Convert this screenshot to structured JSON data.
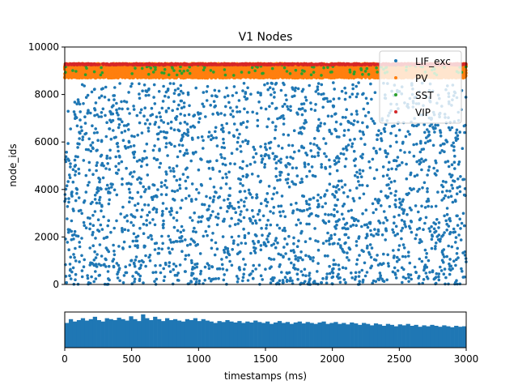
{
  "chart_data": [
    {
      "type": "scatter",
      "title": "V1 Nodes",
      "xlabel": "",
      "ylabel": "node_ids",
      "xlim": [
        0,
        3000
      ],
      "ylim": [
        0,
        10000
      ],
      "yticks": [
        0,
        2000,
        4000,
        6000,
        8000,
        10000
      ],
      "ytick_labels": [
        "0",
        "2000",
        "4000",
        "6000",
        "8000",
        "10000"
      ],
      "grid": false,
      "legend_position": "top-right",
      "series": [
        {
          "name": "LIF_exc",
          "color": "#1f77b4",
          "node_id_range": [
            0,
            8500
          ],
          "sample_spikes_per_100ms": 80
        },
        {
          "name": "PV",
          "color": "#ff7f0e",
          "node_id_range": [
            8700,
            9300
          ],
          "sample_spikes_per_100ms": 220
        },
        {
          "name": "SST",
          "color": "#2ca02c",
          "node_id_range": [
            8800,
            9250
          ],
          "sample_spikes_per_100ms": 4
        },
        {
          "name": "VIP",
          "color": "#d62728",
          "node_id_range": [
            9240,
            9300
          ],
          "sample_spikes_per_100ms": 30
        }
      ]
    },
    {
      "type": "bar",
      "title": "",
      "xlabel": "timestamps (ms)",
      "ylabel": "",
      "xlim": [
        0,
        3000
      ],
      "xticks": [
        0,
        500,
        1000,
        1500,
        2000,
        2500,
        3000
      ],
      "xtick_labels": [
        "0",
        "500",
        "1000",
        "1500",
        "2000",
        "2500",
        "3000"
      ],
      "bin_width_ms": 30,
      "color": "#1f77b4",
      "values": [
        0.52,
        0.6,
        0.55,
        0.58,
        0.62,
        0.57,
        0.6,
        0.65,
        0.58,
        0.55,
        0.62,
        0.6,
        0.58,
        0.63,
        0.6,
        0.57,
        0.66,
        0.6,
        0.56,
        0.7,
        0.62,
        0.58,
        0.65,
        0.6,
        0.56,
        0.62,
        0.58,
        0.6,
        0.57,
        0.55,
        0.6,
        0.58,
        0.62,
        0.56,
        0.6,
        0.57,
        0.55,
        0.52,
        0.56,
        0.54,
        0.58,
        0.55,
        0.53,
        0.56,
        0.52,
        0.55,
        0.53,
        0.57,
        0.54,
        0.52,
        0.55,
        0.5,
        0.53,
        0.56,
        0.52,
        0.54,
        0.5,
        0.53,
        0.55,
        0.51,
        0.54,
        0.52,
        0.5,
        0.53,
        0.55,
        0.5,
        0.52,
        0.54,
        0.5,
        0.52,
        0.49,
        0.53,
        0.51,
        0.48,
        0.52,
        0.5,
        0.47,
        0.51,
        0.49,
        0.46,
        0.5,
        0.48,
        0.45,
        0.49,
        0.47,
        0.5,
        0.46,
        0.48,
        0.44,
        0.47,
        0.45,
        0.48,
        0.46,
        0.44,
        0.47,
        0.45,
        0.43,
        0.46,
        0.44,
        0.45
      ],
      "ylim": [
        0,
        0.75
      ]
    }
  ]
}
